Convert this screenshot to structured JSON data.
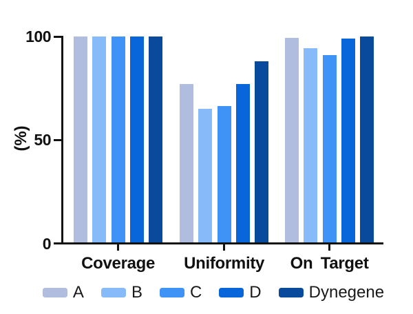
{
  "chart_data": {
    "type": "bar",
    "title": "",
    "xlabel": "",
    "ylabel": "(%)",
    "categories": [
      "Coverage",
      "Uniformity",
      "On Target"
    ],
    "series": [
      {
        "name": "A",
        "color": "#b1bdde",
        "values": [
          100,
          77,
          99.5
        ]
      },
      {
        "name": "B",
        "color": "#87baf8",
        "values": [
          100,
          65,
          94.5
        ]
      },
      {
        "name": "C",
        "color": "#3f93f6",
        "values": [
          100,
          66.5,
          91
        ]
      },
      {
        "name": "D",
        "color": "#0866da",
        "values": [
          100,
          77,
          99
        ]
      },
      {
        "name": "Dynegene",
        "color": "#0a4a9c",
        "values": [
          100,
          88,
          100
        ]
      }
    ],
    "ylim": [
      0,
      100
    ],
    "yticks": [
      0,
      50,
      100
    ],
    "grid": false,
    "legend_position": "bottom",
    "axis_color": "#121212",
    "background_color": "#ffffff"
  }
}
